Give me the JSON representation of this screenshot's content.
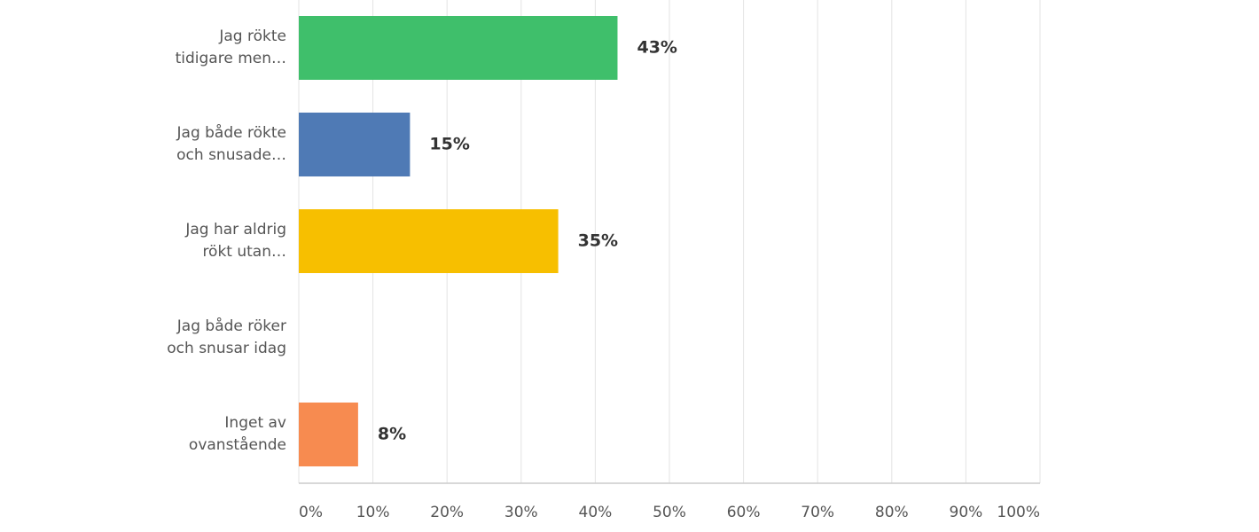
{
  "chart_data": {
    "type": "hbar",
    "categories": [
      "Jag rökte\ntidigare men…",
      "Jag både rökte\noch snusade…",
      "Jag har aldrig\nrökt utan…",
      "Jag både röker\noch snusar idag",
      "Inget av\novanstående"
    ],
    "values": [
      43,
      15,
      35,
      null,
      8
    ],
    "value_labels": [
      "43%",
      "15%",
      "35%",
      null,
      "8%"
    ],
    "colors": [
      "#3fbf6b",
      "#4f7ab5",
      "#f7bf00",
      null,
      "#f78b50"
    ],
    "xlim": [
      0,
      100
    ],
    "xticks": [
      {
        "value": 0,
        "label": "0%"
      },
      {
        "value": 10,
        "label": "10%"
      },
      {
        "value": 20,
        "label": "20%"
      },
      {
        "value": 30,
        "label": "30%"
      },
      {
        "value": 40,
        "label": "40%"
      },
      {
        "value": 50,
        "label": "50%"
      },
      {
        "value": 60,
        "label": "60%"
      },
      {
        "value": 70,
        "label": "70%"
      },
      {
        "value": 80,
        "label": "80%"
      },
      {
        "value": 90,
        "label": "90%"
      },
      {
        "value": 100,
        "label": "100%"
      }
    ],
    "grid": true
  }
}
